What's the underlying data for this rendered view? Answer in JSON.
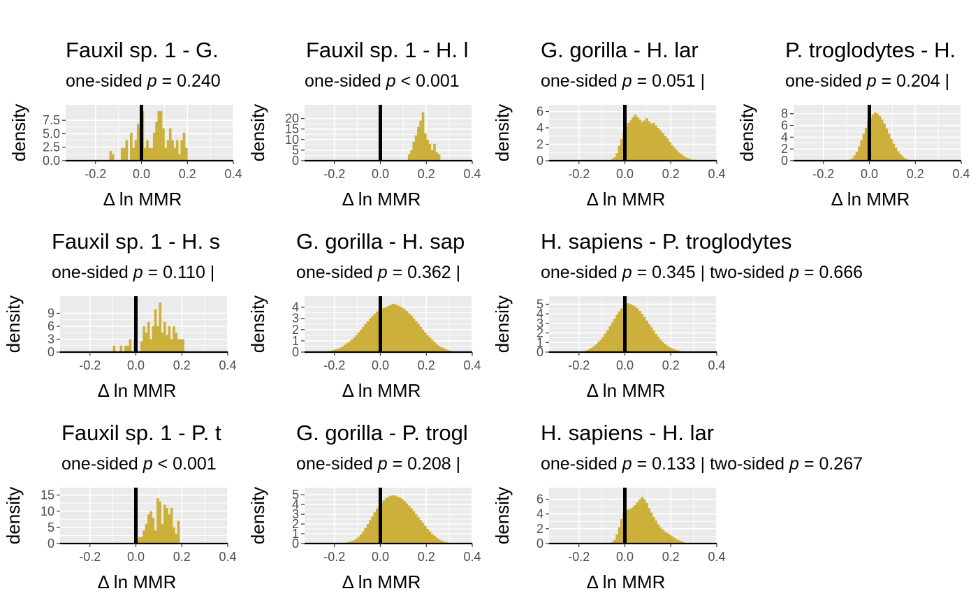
{
  "figure": {
    "colors": {
      "bar": "#CDB03C",
      "panel_bg": "#EBEBEB",
      "grid": "#FFFFFF",
      "zero_line": "#000000",
      "text": "#000000",
      "tick_text": "#4D4D4D"
    }
  },
  "chart_data": [
    {
      "type": "histogram",
      "title": "Fauxil sp. 1 - G.",
      "subtitle_parts": [
        "one-sided ",
        "p",
        " = 0.240"
      ],
      "xlabel": "Δ ln MMR",
      "ylabel": "density",
      "xlim": [
        -0.33,
        0.4
      ],
      "ylim": [
        0,
        9.6
      ],
      "xticks": [
        -0.2,
        0.0,
        0.2,
        0.4
      ],
      "xtick_labels": [
        "-0.2",
        "0.0",
        "0.2",
        "0.4"
      ],
      "yticks": [
        0,
        2.5,
        5,
        7.5
      ],
      "ytick_labels": [
        "0.0",
        "2.5",
        "5.0",
        "7.5"
      ],
      "reference_line_x": 0,
      "bin_start": -0.21,
      "bin_width": 0.01,
      "values": [
        0,
        0,
        0,
        0,
        0,
        0,
        0,
        1.8,
        1.2,
        0,
        0,
        0,
        2.4,
        2.4,
        3.8,
        0,
        5.2,
        2.4,
        3.8,
        6.8,
        6,
        9.2,
        2.4,
        3.8,
        2.4,
        2.4,
        5.2,
        7.2,
        9.2,
        9.2,
        6,
        2.4,
        3.8,
        6,
        3.8,
        2.4,
        3.8,
        1.2,
        3.8,
        5.2,
        2.4,
        0,
        0,
        0,
        0,
        0,
        0,
        0,
        0,
        0
      ]
    },
    {
      "type": "histogram",
      "title": "Fauxil sp. 1 - H. l",
      "subtitle_parts": [
        "one-sided ",
        "p",
        " < 0.001"
      ],
      "xlabel": "Δ ln MMR",
      "ylabel": "density",
      "xlim": [
        -0.33,
        0.4
      ],
      "ylim": [
        0,
        24.5
      ],
      "xticks": [
        -0.2,
        0.0,
        0.2,
        0.4
      ],
      "xtick_labels": [
        "-0.2",
        "0.0",
        "0.2",
        "0.4"
      ],
      "yticks": [
        0,
        5,
        10,
        15,
        20
      ],
      "ytick_labels": [
        "0",
        "5",
        "10",
        "15",
        "20"
      ],
      "reference_line_x": 0,
      "bin_start": 0.06,
      "bin_width": 0.01,
      "values": [
        0,
        0,
        0,
        0,
        0,
        0,
        3,
        5,
        9,
        12,
        16,
        19,
        23,
        13,
        10,
        8,
        5,
        8,
        4,
        3,
        0,
        0
      ]
    },
    {
      "type": "histogram",
      "title": "G. gorilla - H. lar",
      "subtitle_parts": [
        "one-sided ",
        "p",
        " = 0.051 |"
      ],
      "xlabel": "Δ ln MMR",
      "ylabel": "density",
      "xlim": [
        -0.33,
        0.4
      ],
      "ylim": [
        0,
        6.3
      ],
      "xticks": [
        -0.2,
        0.0,
        0.2,
        0.4
      ],
      "xtick_labels": [
        "-0.2",
        "0.0",
        "0.2",
        "0.4"
      ],
      "yticks": [
        0,
        2,
        4,
        6
      ],
      "ytick_labels": [
        "0",
        "2",
        "4",
        "6"
      ],
      "reference_line_x": 0,
      "bin_start": -0.06,
      "bin_width": 0.01,
      "values": [
        0.2,
        0.4,
        0.9,
        1.8,
        2.6,
        3.4,
        4.1,
        4.6,
        4.9,
        5.3,
        5.6,
        5.3,
        5.0,
        4.7,
        4.9,
        5.2,
        4.8,
        4.5,
        4.6,
        4.3,
        4.0,
        3.7,
        3.4,
        3.0,
        2.7,
        2.3,
        1.9,
        1.6,
        1.3,
        1.0,
        0.8,
        0.6,
        0.4,
        0.3,
        0.2,
        0.1,
        0.1,
        0.05,
        0
      ]
    },
    {
      "type": "histogram",
      "title": "P. troglodytes - H.",
      "subtitle_parts": [
        "one-sided ",
        "p",
        " = 0.204 |"
      ],
      "xlabel": "Δ ln MMR",
      "ylabel": "density",
      "xlim": [
        -0.33,
        0.4
      ],
      "ylim": [
        0,
        8.8
      ],
      "xticks": [
        -0.2,
        0.0,
        0.2,
        0.4
      ],
      "xtick_labels": [
        "-0.2",
        "0.0",
        "0.2",
        "0.4"
      ],
      "yticks": [
        0,
        2,
        4,
        6,
        8
      ],
      "ytick_labels": [
        "0",
        "2",
        "4",
        "6",
        "8"
      ],
      "reference_line_x": 0,
      "bin_start": -0.09,
      "bin_width": 0.01,
      "values": [
        0.2,
        0.4,
        0.9,
        1.5,
        2.4,
        3.5,
        4.6,
        5.6,
        6.6,
        7.3,
        7.9,
        8.2,
        8.0,
        7.6,
        7.0,
        6.3,
        5.5,
        4.6,
        3.7,
        2.9,
        2.2,
        1.6,
        1.1,
        0.7,
        0.4,
        0.2,
        0.1,
        0
      ]
    },
    {
      "type": "histogram",
      "title": "Fauxil sp. 1 - H. s",
      "subtitle_parts": [
        "one-sided ",
        "p",
        " = 0.110 |"
      ],
      "xlabel": "Δ ln MMR",
      "ylabel": "density",
      "xlim": [
        -0.33,
        0.4
      ],
      "ylim": [
        0,
        12
      ],
      "xticks": [
        -0.2,
        0.0,
        0.2,
        0.4
      ],
      "xtick_labels": [
        "-0.2",
        "0.0",
        "0.2",
        "0.4"
      ],
      "yticks": [
        0,
        3,
        6,
        9
      ],
      "ytick_labels": [
        "0",
        "3",
        "6",
        "9"
      ],
      "reference_line_x": 0,
      "bin_start": -0.1,
      "bin_width": 0.01,
      "values": [
        1.5,
        0,
        0,
        1.5,
        0,
        1.5,
        1.5,
        3,
        0,
        3,
        0,
        0,
        2.5,
        6,
        4.5,
        7,
        3,
        6,
        10,
        6,
        11.5,
        4.5,
        7,
        4,
        6,
        3,
        6,
        4.5,
        3,
        3,
        3,
        0
      ]
    },
    {
      "type": "histogram",
      "title": "G. gorilla - H. sap",
      "subtitle_parts": [
        "one-sided ",
        "p",
        " = 0.362 |"
      ],
      "xlabel": "Δ ln MMR",
      "ylabel": "density",
      "xlim": [
        -0.33,
        0.4
      ],
      "ylim": [
        0,
        4.6
      ],
      "xticks": [
        -0.2,
        0.0,
        0.2,
        0.4
      ],
      "xtick_labels": [
        "-0.2",
        "0.0",
        "0.2",
        "0.4"
      ],
      "yticks": [
        0,
        1,
        2,
        3,
        4
      ],
      "ytick_labels": [
        "0",
        "1",
        "2",
        "3",
        "4"
      ],
      "reference_line_x": 0,
      "bin_start": -0.25,
      "bin_width": 0.01,
      "values": [
        0.05,
        0.05,
        0.1,
        0.12,
        0.18,
        0.25,
        0.3,
        0.4,
        0.5,
        0.65,
        0.8,
        0.95,
        1.1,
        1.3,
        1.5,
        1.75,
        2.0,
        2.25,
        2.5,
        2.75,
        3.0,
        3.2,
        3.4,
        3.6,
        3.75,
        3.85,
        3.95,
        4.0,
        4.1,
        4.2,
        4.3,
        4.25,
        4.15,
        4.05,
        3.95,
        3.8,
        3.65,
        3.45,
        3.25,
        3.0,
        2.75,
        2.5,
        2.25,
        2.0,
        1.75,
        1.5,
        1.3,
        1.1,
        0.9,
        0.7,
        0.55,
        0.45,
        0.35,
        0.25,
        0.18,
        0.12,
        0.08,
        0.05,
        0.03,
        0.02,
        0
      ]
    },
    {
      "type": "histogram",
      "title": "H. sapiens - P. troglodytes",
      "subtitle_parts": [
        "one-sided ",
        "p",
        " = 0.345 | two-sided ",
        "p",
        " = 0.666"
      ],
      "xlabel": "Δ ln MMR",
      "ylabel": "density",
      "xlim": [
        -0.33,
        0.4
      ],
      "ylim": [
        0,
        5.4
      ],
      "xticks": [
        -0.2,
        0.0,
        0.2,
        0.4
      ],
      "xtick_labels": [
        "-0.2",
        "0.0",
        "0.2",
        "0.4"
      ],
      "yticks": [
        0,
        1,
        2,
        3,
        4,
        5
      ],
      "ytick_labels": [
        "0",
        "1",
        "2",
        "3",
        "4",
        "5"
      ],
      "reference_line_x": 0,
      "bin_start": -0.2,
      "bin_width": 0.01,
      "values": [
        0.05,
        0.08,
        0.12,
        0.2,
        0.3,
        0.45,
        0.6,
        0.8,
        1.05,
        1.3,
        1.6,
        1.95,
        2.3,
        2.7,
        3.1,
        3.5,
        3.9,
        4.25,
        4.55,
        4.8,
        5.0,
        5.1,
        5.0,
        4.9,
        4.75,
        4.55,
        4.3,
        4.0,
        3.65,
        3.3,
        2.95,
        2.6,
        2.25,
        1.9,
        1.6,
        1.3,
        1.05,
        0.85,
        0.65,
        0.5,
        0.38,
        0.28,
        0.2,
        0.14,
        0.1,
        0.07,
        0.04,
        0.02,
        0
      ]
    },
    {
      "type": "histogram",
      "title": "Fauxil sp. 1 - P. t",
      "subtitle_parts": [
        "one-sided ",
        "p",
        " < 0.001"
      ],
      "xlabel": "Δ ln MMR",
      "ylabel": "density",
      "xlim": [
        -0.33,
        0.4
      ],
      "ylim": [
        0,
        16
      ],
      "xticks": [
        -0.2,
        0.0,
        0.2,
        0.4
      ],
      "xtick_labels": [
        "-0.2",
        "0.0",
        "0.2",
        "0.4"
      ],
      "yticks": [
        0,
        5,
        10,
        15
      ],
      "ytick_labels": [
        "0",
        "5",
        "10",
        "15"
      ],
      "reference_line_x": 0,
      "bin_start": 0.0,
      "bin_width": 0.01,
      "values": [
        1,
        2,
        2,
        4,
        6,
        9,
        10,
        8,
        4,
        14,
        13,
        6,
        12,
        11,
        9,
        11,
        5,
        3,
        7,
        0
      ]
    },
    {
      "type": "histogram",
      "title": "G. gorilla - P. trogl",
      "subtitle_parts": [
        "one-sided ",
        "p",
        " = 0.208 |"
      ],
      "xlabel": "Δ ln MMR",
      "ylabel": "density",
      "xlim": [
        -0.33,
        0.4
      ],
      "ylim": [
        0,
        5.3
      ],
      "xticks": [
        -0.2,
        0.0,
        0.2,
        0.4
      ],
      "xtick_labels": [
        "-0.2",
        "0.0",
        "0.2",
        "0.4"
      ],
      "yticks": [
        0,
        1,
        2,
        3,
        4,
        5
      ],
      "ytick_labels": [
        "0",
        "1",
        "2",
        "3",
        "4",
        "5"
      ],
      "reference_line_x": 0,
      "bin_start": -0.17,
      "bin_width": 0.01,
      "values": [
        0.05,
        0.08,
        0.12,
        0.18,
        0.25,
        0.35,
        0.5,
        0.7,
        0.95,
        1.25,
        1.6,
        2.0,
        2.4,
        2.8,
        3.2,
        3.6,
        3.9,
        4.2,
        4.45,
        4.65,
        4.8,
        4.9,
        4.95,
        4.9,
        4.8,
        4.7,
        4.55,
        4.35,
        4.1,
        3.85,
        3.6,
        3.3,
        3.0,
        2.7,
        2.4,
        2.1,
        1.8,
        1.5,
        1.25,
        1.0,
        0.8,
        0.6,
        0.45,
        0.32,
        0.22,
        0.15,
        0.1,
        0
      ]
    },
    {
      "type": "histogram",
      "title": "H. sapiens - H. lar",
      "subtitle_parts": [
        "one-sided ",
        "p",
        " = 0.133 | two-sided ",
        "p",
        " = 0.267"
      ],
      "xlabel": "Δ ln MMR",
      "ylabel": "density",
      "xlim": [
        -0.33,
        0.4
      ],
      "ylim": [
        0,
        7
      ],
      "xticks": [
        -0.2,
        0.0,
        0.2,
        0.4
      ],
      "xtick_labels": [
        "-0.2",
        "0.0",
        "0.2",
        "0.4"
      ],
      "yticks": [
        0,
        2,
        4,
        6
      ],
      "ytick_labels": [
        "0",
        "2",
        "4",
        "6"
      ],
      "reference_line_x": 0,
      "bin_start": -0.06,
      "bin_width": 0.01,
      "values": [
        0.2,
        0.5,
        1.2,
        2.2,
        3.3,
        4.1,
        4.5,
        4.6,
        4.7,
        4.9,
        5.2,
        5.6,
        6.0,
        6.3,
        6.0,
        5.5,
        4.8,
        4.2,
        3.6,
        3.1,
        2.6,
        2.2,
        1.9,
        1.6,
        1.4,
        1.2,
        1.0,
        0.8,
        0.6,
        0.45,
        0.3,
        0.2,
        0.1,
        0.05,
        0
      ]
    }
  ]
}
